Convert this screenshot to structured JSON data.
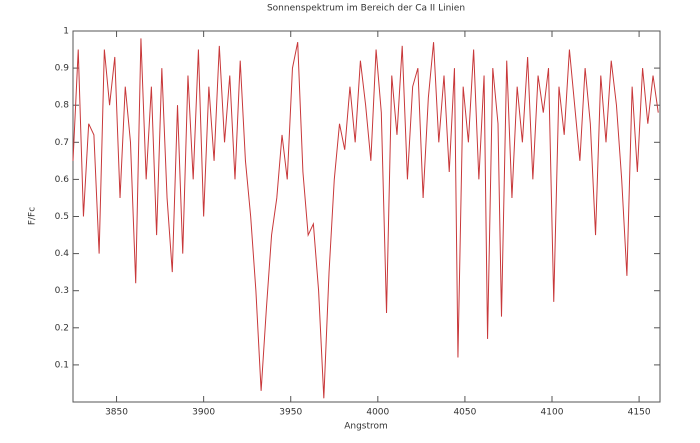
{
  "chart_data": {
    "type": "line",
    "title": "Sonnenspektrum im Bereich der Ca II Linien",
    "x_label": "Angstrom",
    "y_label": "F/Fc",
    "xlim": [
      3825,
      4162
    ],
    "ylim": [
      0,
      1
    ],
    "xticks": [
      3850,
      3900,
      3950,
      4000,
      4050,
      4100,
      4150
    ],
    "yticks": [
      0.1,
      0.2,
      0.3,
      0.4,
      0.5,
      0.6,
      0.7,
      0.8,
      0.9,
      1
    ],
    "x": [
      3825,
      3828,
      3831,
      3834,
      3837,
      3840,
      3843,
      3846,
      3849,
      3852,
      3855,
      3858,
      3861,
      3864,
      3867,
      3870,
      3873,
      3876,
      3879,
      3882,
      3885,
      3888,
      3891,
      3894,
      3897,
      3900,
      3903,
      3906,
      3909,
      3912,
      3915,
      3918,
      3921,
      3924,
      3927,
      3930,
      3933,
      3936,
      3939,
      3942,
      3945,
      3948,
      3951,
      3954,
      3957,
      3960,
      3963,
      3966,
      3969,
      3972,
      3975,
      3978,
      3981,
      3984,
      3987,
      3990,
      3993,
      3996,
      3999,
      4002,
      4005,
      4008,
      4011,
      4014,
      4017,
      4020,
      4023,
      4026,
      4029,
      4032,
      4035,
      4038,
      4041,
      4044,
      4046,
      4049,
      4052,
      4055,
      4058,
      4061,
      4063,
      4066,
      4069,
      4071,
      4074,
      4077,
      4080,
      4083,
      4086,
      4089,
      4092,
      4095,
      4098,
      4101,
      4104,
      4107,
      4110,
      4113,
      4116,
      4119,
      4122,
      4125,
      4128,
      4131,
      4134,
      4137,
      4140,
      4143,
      4146,
      4149,
      4152,
      4155,
      4158,
      4161
    ],
    "series": [
      {
        "color": "#c8383a",
        "values": [
          0.65,
          0.95,
          0.5,
          0.75,
          0.72,
          0.4,
          0.95,
          0.8,
          0.93,
          0.55,
          0.85,
          0.7,
          0.32,
          0.98,
          0.6,
          0.85,
          0.45,
          0.9,
          0.55,
          0.35,
          0.8,
          0.4,
          0.88,
          0.6,
          0.95,
          0.5,
          0.85,
          0.65,
          0.96,
          0.7,
          0.88,
          0.6,
          0.92,
          0.65,
          0.5,
          0.3,
          0.03,
          0.25,
          0.45,
          0.55,
          0.72,
          0.6,
          0.9,
          0.97,
          0.62,
          0.45,
          0.48,
          0.3,
          0.01,
          0.35,
          0.6,
          0.75,
          0.68,
          0.85,
          0.7,
          0.92,
          0.8,
          0.65,
          0.95,
          0.78,
          0.24,
          0.88,
          0.72,
          0.96,
          0.6,
          0.85,
          0.9,
          0.55,
          0.82,
          0.97,
          0.7,
          0.88,
          0.62,
          0.9,
          0.12,
          0.85,
          0.7,
          0.95,
          0.6,
          0.88,
          0.17,
          0.9,
          0.75,
          0.23,
          0.92,
          0.55,
          0.85,
          0.7,
          0.93,
          0.6,
          0.88,
          0.78,
          0.9,
          0.27,
          0.85,
          0.72,
          0.95,
          0.8,
          0.65,
          0.9,
          0.75,
          0.45,
          0.88,
          0.7,
          0.92,
          0.8,
          0.6,
          0.34,
          0.85,
          0.62,
          0.9,
          0.75,
          0.88,
          0.78
        ]
      }
    ]
  }
}
